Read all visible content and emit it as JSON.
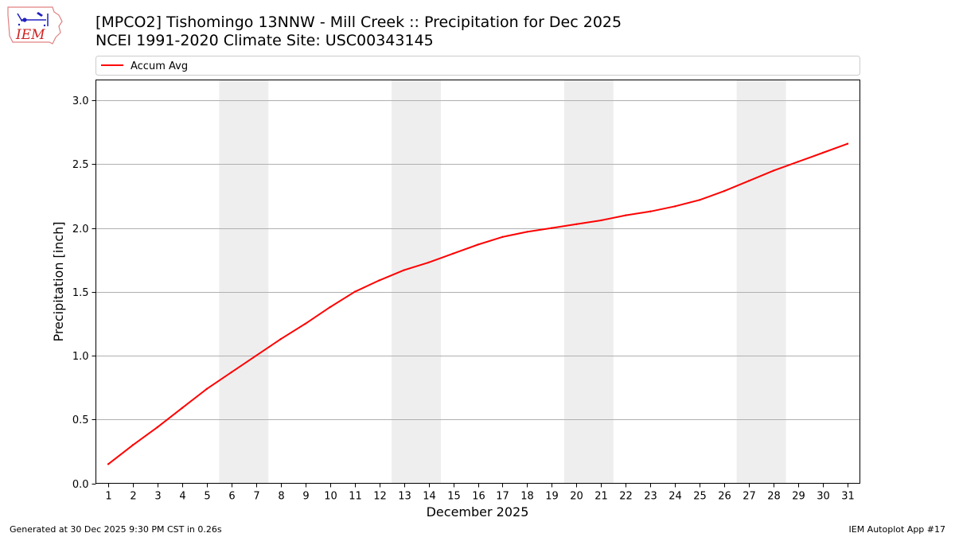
{
  "header": {
    "title_line1": "[MPCO2] Tishomingo 13NNW - Mill Creek :: Precipitation for Dec 2025",
    "title_line2": "NCEI 1991-2020 Climate Site: USC00343145"
  },
  "logo": {
    "text": "IEM",
    "icon": "iem-logo-icon"
  },
  "footer": {
    "generated": "Generated at 30 Dec 2025 9:30 PM CST in 0.26s",
    "app": "IEM Autoplot App #17"
  },
  "colors": {
    "line": "#ff0000",
    "weekend_band": "#eeeeee",
    "grid": "#b0b0b0"
  },
  "chart_data": {
    "type": "line",
    "xlabel": "December 2025",
    "ylabel": "Precipitation [inch]",
    "xlim": [
      0.5,
      31.5
    ],
    "ylim": [
      0,
      3.16
    ],
    "x": [
      1,
      2,
      3,
      4,
      5,
      6,
      7,
      8,
      9,
      10,
      11,
      12,
      13,
      14,
      15,
      16,
      17,
      18,
      19,
      20,
      21,
      22,
      23,
      24,
      25,
      26,
      27,
      28,
      29,
      30,
      31
    ],
    "x_tick_labels": [
      "1",
      "2",
      "3",
      "4",
      "5",
      "6",
      "7",
      "8",
      "9",
      "10",
      "11",
      "12",
      "13",
      "14",
      "15",
      "16",
      "17",
      "18",
      "19",
      "20",
      "21",
      "22",
      "23",
      "24",
      "25",
      "26",
      "27",
      "28",
      "29",
      "30",
      "31"
    ],
    "y_ticks": [
      0.0,
      0.5,
      1.0,
      1.5,
      2.0,
      2.5,
      3.0
    ],
    "y_tick_labels": [
      "0.0",
      "0.5",
      "1.0",
      "1.5",
      "2.0",
      "2.5",
      "3.0"
    ],
    "series": [
      {
        "name": "Accum Avg",
        "color": "#ff0000",
        "values": [
          0.15,
          0.3,
          0.44,
          0.59,
          0.74,
          0.87,
          1.0,
          1.13,
          1.25,
          1.38,
          1.5,
          1.59,
          1.67,
          1.73,
          1.8,
          1.87,
          1.93,
          1.97,
          2.0,
          2.03,
          2.06,
          2.1,
          2.13,
          2.17,
          2.22,
          2.29,
          2.37,
          2.45,
          2.52,
          2.59,
          2.66
        ]
      }
    ],
    "weekend_bands": [
      [
        5.5,
        7.5
      ],
      [
        12.5,
        14.5
      ],
      [
        19.5,
        21.5
      ],
      [
        26.5,
        28.5
      ]
    ],
    "grid": "horizontal",
    "legend": {
      "placement": "top",
      "entries": [
        "Accum Avg"
      ]
    }
  }
}
